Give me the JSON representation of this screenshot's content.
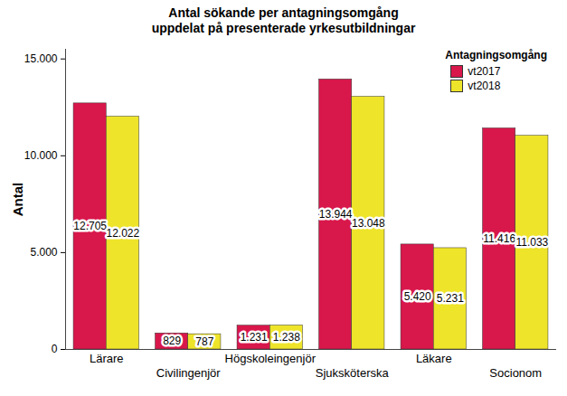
{
  "chart_data": {
    "type": "bar",
    "title": "Antal sökande per antagningsomgång",
    "subtitle": "uppdelat på presenterade yrkesutbildningar",
    "y_label": "Antal",
    "legend_title": "Antagningsomgång",
    "legend": "top-right",
    "grid": false,
    "data_labels": true,
    "categories": [
      "Lärare",
      "Civilingenjör",
      "Högskoleingenjör",
      "Sjuksköterska",
      "Läkare",
      "Socionom"
    ],
    "series": [
      {
        "name": "vt2017",
        "color": "#d8174b",
        "values": [
          12705,
          829,
          1231,
          13944,
          5420,
          11416
        ],
        "value_labels": [
          "12.705",
          "829",
          "1.231",
          "13.944",
          "5.420",
          "11.416"
        ]
      },
      {
        "name": "vt2018",
        "color": "#eee42a",
        "values": [
          12022,
          787,
          1238,
          13048,
          5231,
          11033
        ],
        "value_labels": [
          "12.022",
          "787",
          "1.238",
          "13.048",
          "5.231",
          "11.033"
        ]
      }
    ],
    "ylim": [
      0,
      15500
    ],
    "yticks": [
      0,
      {
        "value": 5000,
        "label": "5.000"
      },
      {
        "value": 10000,
        "label": "10.000"
      },
      {
        "value": 15000,
        "label": "15.000"
      }
    ]
  }
}
